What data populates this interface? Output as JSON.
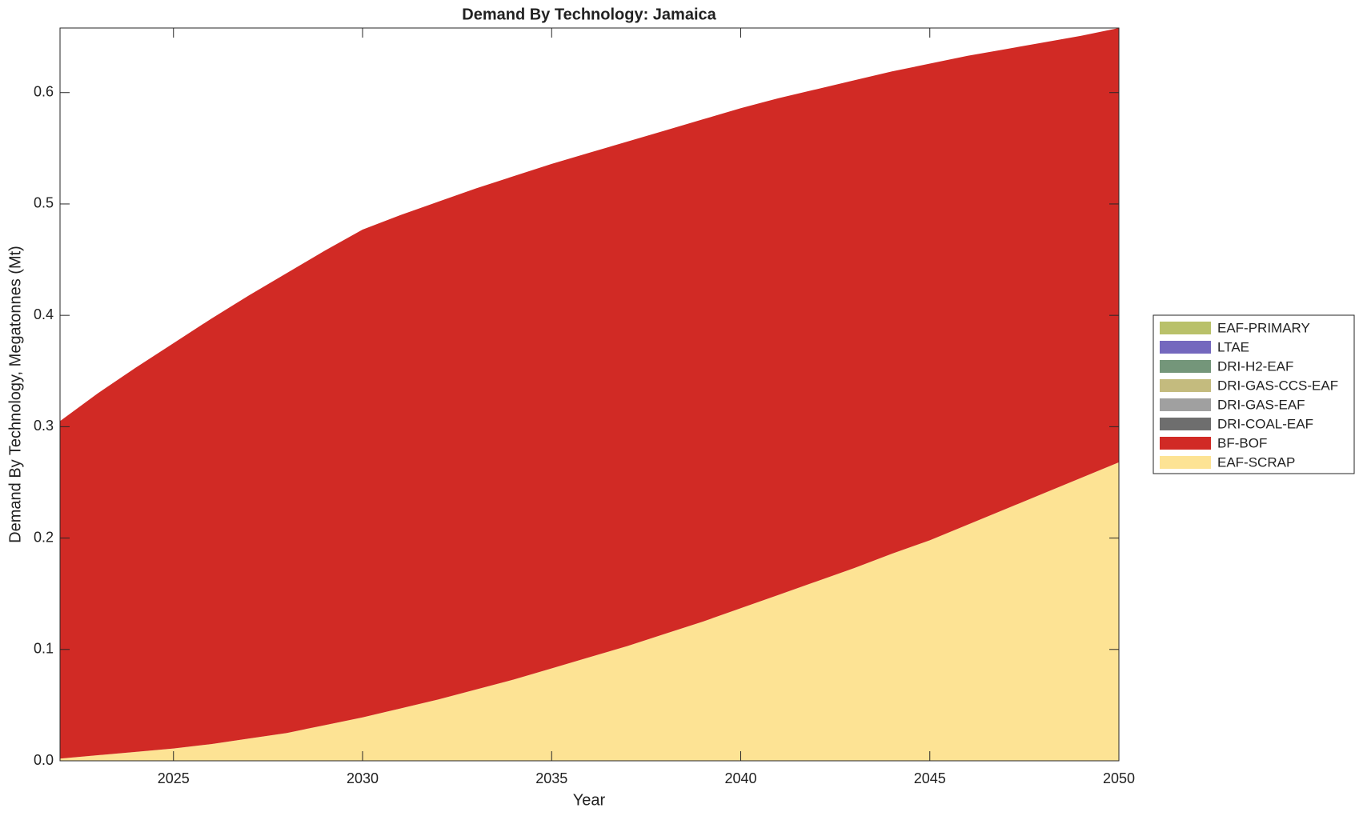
{
  "chart_data": {
    "type": "stacked_area",
    "title": "Demand By Technology: Jamaica",
    "xlabel": "Year",
    "ylabel": "Demand By Technology, Megatonnes (Mt)",
    "x": [
      2022,
      2023,
      2024,
      2025,
      2026,
      2027,
      2028,
      2029,
      2030,
      2031,
      2032,
      2033,
      2034,
      2035,
      2036,
      2037,
      2038,
      2039,
      2040,
      2041,
      2042,
      2043,
      2044,
      2045,
      2046,
      2047,
      2048,
      2049,
      2050
    ],
    "xlim": [
      2022,
      2050
    ],
    "xticks": [
      2025,
      2030,
      2035,
      2040,
      2045,
      2050
    ],
    "ylim": [
      0,
      0.658
    ],
    "yticks": [
      {
        "value": 0,
        "label": "0.0"
      },
      0.1,
      0.2,
      0.3,
      0.4,
      0.5,
      0.6
    ],
    "legend": "outside-right",
    "series": [
      {
        "name": "EAF-PRIMARY",
        "color": "#b9c16a",
        "values": [
          0,
          0,
          0,
          0,
          0,
          0,
          0,
          0,
          0,
          0,
          0,
          0,
          0,
          0,
          0,
          0,
          0,
          0,
          0,
          0,
          0,
          0,
          0,
          0,
          0,
          0,
          0,
          0,
          0
        ]
      },
      {
        "name": "LTAE",
        "color": "#7468be",
        "values": [
          0,
          0,
          0,
          0,
          0,
          0,
          0,
          0,
          0,
          0,
          0,
          0,
          0,
          0,
          0,
          0,
          0,
          0,
          0,
          0,
          0,
          0,
          0,
          0,
          0,
          0,
          0,
          0,
          0
        ]
      },
      {
        "name": "DRI-H2-EAF",
        "color": "#74967a",
        "values": [
          0,
          0,
          0,
          0,
          0,
          0,
          0,
          0,
          0,
          0,
          0,
          0,
          0,
          0,
          0,
          0,
          0,
          0,
          0,
          0,
          0,
          0,
          0,
          0,
          0,
          0,
          0,
          0,
          0
        ]
      },
      {
        "name": "DRI-GAS-CCS-EAF",
        "color": "#c4bb7e",
        "values": [
          0,
          0,
          0,
          0,
          0,
          0,
          0,
          0,
          0,
          0,
          0,
          0,
          0,
          0,
          0,
          0,
          0,
          0,
          0,
          0,
          0,
          0,
          0,
          0,
          0,
          0,
          0,
          0,
          0
        ]
      },
      {
        "name": "DRI-GAS-EAF",
        "color": "#a0a0a0",
        "values": [
          0,
          0,
          0,
          0,
          0,
          0,
          0,
          0,
          0,
          0,
          0,
          0,
          0,
          0,
          0,
          0,
          0,
          0,
          0,
          0,
          0,
          0,
          0,
          0,
          0,
          0,
          0,
          0,
          0
        ]
      },
      {
        "name": "DRI-COAL-EAF",
        "color": "#6e6e6e",
        "values": [
          0,
          0,
          0,
          0,
          0,
          0,
          0,
          0,
          0,
          0,
          0,
          0,
          0,
          0,
          0,
          0,
          0,
          0,
          0,
          0,
          0,
          0,
          0,
          0,
          0,
          0,
          0,
          0,
          0
        ]
      },
      {
        "name": "BF-BOF",
        "color": "#d12a25",
        "values": [
          0.303,
          0.325,
          0.345,
          0.364,
          0.382,
          0.398,
          0.413,
          0.426,
          0.438,
          0.443,
          0.447,
          0.45,
          0.452,
          0.453,
          0.453,
          0.453,
          0.452,
          0.451,
          0.449,
          0.446,
          0.442,
          0.438,
          0.433,
          0.428,
          0.421,
          0.413,
          0.405,
          0.397,
          0.39
        ]
      },
      {
        "name": "EAF-SCRAP",
        "color": "#fde394",
        "values": [
          0.002,
          0.005,
          0.008,
          0.011,
          0.015,
          0.02,
          0.025,
          0.032,
          0.039,
          0.047,
          0.055,
          0.064,
          0.073,
          0.083,
          0.093,
          0.103,
          0.114,
          0.125,
          0.137,
          0.149,
          0.161,
          0.173,
          0.186,
          0.198,
          0.212,
          0.226,
          0.24,
          0.254,
          0.268
        ]
      }
    ]
  }
}
